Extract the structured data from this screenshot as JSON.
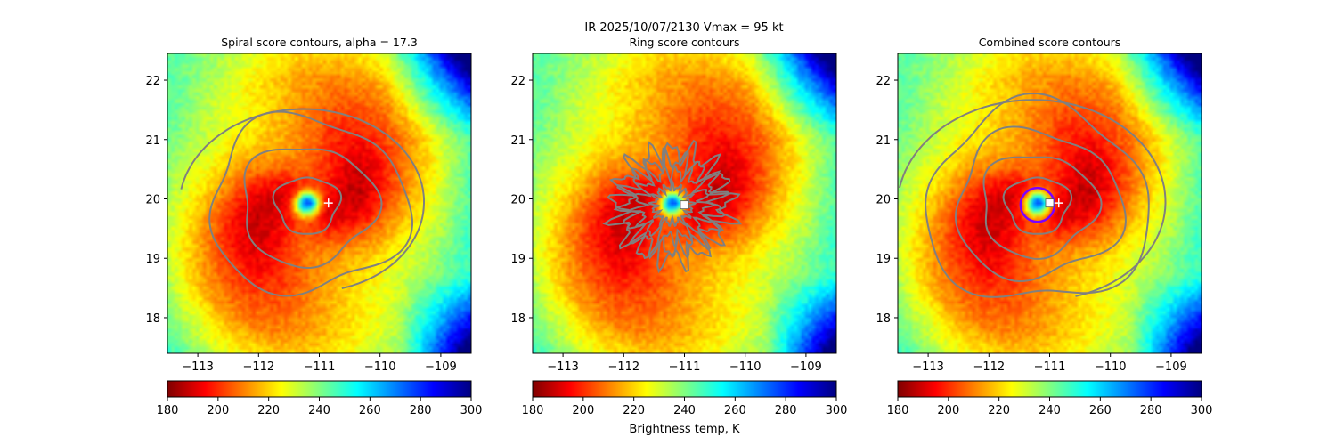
{
  "figure": {
    "suptitle": "IR  2025/10/07/2130    Vmax = 95 kt",
    "colorbar_label": "Brightness temp, K"
  },
  "colors": {
    "colormap": [
      "#800000",
      "#ff0000",
      "#ff8000",
      "#ffff00",
      "#80ff80",
      "#00ffff",
      "#0080ff",
      "#0000ff",
      "#000080"
    ],
    "contour": "#808080",
    "marker": "#ffffff",
    "center_ring": "#7b00ff"
  },
  "chart_data": [
    {
      "type": "heatmap",
      "title": "Spiral score contours, alpha = 17.3",
      "xlim": [
        -113.5,
        -108.5
      ],
      "ylim": [
        17.4,
        22.45
      ],
      "xticks": [
        -113,
        -112,
        -111,
        -110,
        -109
      ],
      "yticks": [
        18,
        19,
        20,
        21,
        22
      ],
      "xtick_labels": [
        "−113",
        "−112",
        "−111",
        "−110",
        "−109"
      ],
      "ytick_labels": [
        "18",
        "19",
        "20",
        "21",
        "22"
      ],
      "colorbar": {
        "min": 180,
        "max": 300,
        "ticks": [
          180,
          200,
          220,
          240,
          260,
          280,
          300
        ],
        "labels": [
          "180",
          "200",
          "220",
          "240",
          "260",
          "280",
          "300"
        ]
      },
      "storm_center": {
        "lon": -111.2,
        "lat": 19.9
      },
      "contour_kind": "spiral",
      "contour_radii_deg": [
        0.5,
        1.05,
        1.55
      ],
      "markers": [
        {
          "type": "plus",
          "lon": -110.85,
          "lat": 19.93
        }
      ],
      "has_eye_ring": false
    },
    {
      "type": "heatmap",
      "title": "Ring score contours",
      "xlim": [
        -113.5,
        -108.5
      ],
      "ylim": [
        17.4,
        22.45
      ],
      "xticks": [
        -113,
        -112,
        -111,
        -110,
        -109
      ],
      "yticks": [
        18,
        19,
        20,
        21,
        22
      ],
      "xtick_labels": [
        "−113",
        "−112",
        "−111",
        "−110",
        "−109"
      ],
      "ytick_labels": [
        "18",
        "19",
        "20",
        "21",
        "22"
      ],
      "colorbar": {
        "min": 180,
        "max": 300,
        "ticks": [
          180,
          200,
          220,
          240,
          260,
          280,
          300
        ],
        "labels": [
          "180",
          "200",
          "220",
          "240",
          "260",
          "280",
          "300"
        ]
      },
      "storm_center": {
        "lon": -111.2,
        "lat": 19.9
      },
      "contour_kind": "ring",
      "contour_radii_deg": [
        0.3,
        0.55,
        0.75,
        0.9
      ],
      "markers": [
        {
          "type": "square",
          "lon": -111.0,
          "lat": 19.9
        }
      ],
      "has_eye_ring": false
    },
    {
      "type": "heatmap",
      "title": "Combined score contours",
      "xlim": [
        -113.5,
        -108.5
      ],
      "ylim": [
        17.4,
        22.45
      ],
      "xticks": [
        -113,
        -112,
        -111,
        -110,
        -109
      ],
      "yticks": [
        18,
        19,
        20,
        21,
        22
      ],
      "xtick_labels": [
        "−113",
        "−112",
        "−111",
        "−110",
        "−109"
      ],
      "ytick_labels": [
        "18",
        "19",
        "20",
        "21",
        "22"
      ],
      "colorbar": {
        "min": 180,
        "max": 300,
        "ticks": [
          180,
          200,
          220,
          240,
          260,
          280,
          300
        ],
        "labels": [
          "180",
          "200",
          "220",
          "240",
          "260",
          "280",
          "300"
        ]
      },
      "storm_center": {
        "lon": -111.2,
        "lat": 19.9
      },
      "contour_kind": "spiral",
      "contour_radii_deg": [
        0.5,
        0.9,
        1.3,
        1.75
      ],
      "markers": [
        {
          "type": "square",
          "lon": -111.0,
          "lat": 19.93
        },
        {
          "type": "plus",
          "lon": -110.85,
          "lat": 19.93
        }
      ],
      "has_eye_ring": true
    }
  ]
}
